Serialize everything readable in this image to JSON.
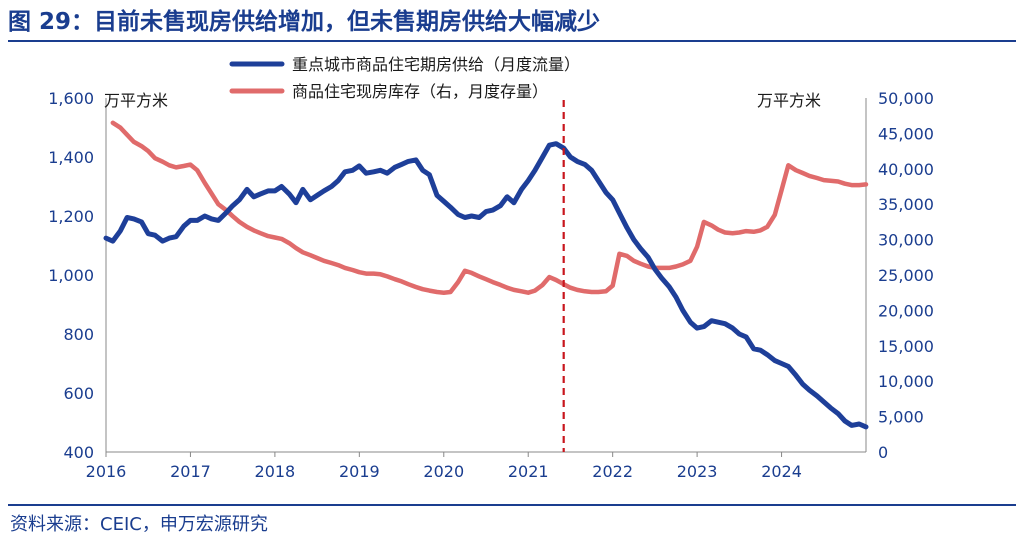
{
  "header": {
    "title": "图 29：目前未售现房供给增加，但未售期房供给大幅减少"
  },
  "footer": {
    "source": "资料来源：CEIC，申万宏源研究"
  },
  "colors": {
    "title": "#1a3d8f",
    "series1": "#1e3f99",
    "series2": "#e06b6b",
    "marker": "#c8161d"
  },
  "chart_data": {
    "type": "line",
    "title": "目前未售现房供给增加，但未售期房供给大幅减少",
    "left_unit": "万平方米",
    "right_unit": "万平方米",
    "x_ticks": [
      "2016",
      "2017",
      "2018",
      "2019",
      "2020",
      "2021",
      "2022",
      "2023",
      "2024"
    ],
    "x_range": [
      2016,
      2025
    ],
    "y_left": {
      "ylim": [
        400,
        1600
      ],
      "ticks": [
        "400",
        "600",
        "800",
        "1,000",
        "1,200",
        "1,400",
        "1,600"
      ],
      "tick_values": [
        400,
        600,
        800,
        1000,
        1200,
        1400,
        1600
      ]
    },
    "y_right": {
      "ylim": [
        0,
        50000
      ],
      "ticks": [
        "0",
        "5,000",
        "10,000",
        "15,000",
        "20,000",
        "25,000",
        "30,000",
        "35,000",
        "40,000",
        "45,000",
        "50,000"
      ],
      "tick_values": [
        0,
        5000,
        10000,
        15000,
        20000,
        25000,
        30000,
        35000,
        40000,
        45000,
        50000
      ]
    },
    "vertical_marker": {
      "x": 2021.42,
      "style": "dashed"
    },
    "series": [
      {
        "name": "重点城市商品住宅期房供给（月度流量）",
        "axis": "left",
        "points": [
          [
            2016.0,
            1125
          ],
          [
            2016.08,
            1115
          ],
          [
            2016.17,
            1150
          ],
          [
            2016.25,
            1195
          ],
          [
            2016.33,
            1190
          ],
          [
            2016.42,
            1180
          ],
          [
            2016.5,
            1140
          ],
          [
            2016.58,
            1135
          ],
          [
            2016.67,
            1115
          ],
          [
            2016.75,
            1125
          ],
          [
            2016.83,
            1130
          ],
          [
            2016.92,
            1165
          ],
          [
            2017.0,
            1185
          ],
          [
            2017.08,
            1185
          ],
          [
            2017.17,
            1200
          ],
          [
            2017.25,
            1190
          ],
          [
            2017.33,
            1185
          ],
          [
            2017.42,
            1210
          ],
          [
            2017.5,
            1235
          ],
          [
            2017.58,
            1255
          ],
          [
            2017.67,
            1290
          ],
          [
            2017.75,
            1265
          ],
          [
            2017.83,
            1275
          ],
          [
            2017.92,
            1285
          ],
          [
            2018.0,
            1285
          ],
          [
            2018.08,
            1300
          ],
          [
            2018.17,
            1275
          ],
          [
            2018.25,
            1245
          ],
          [
            2018.33,
            1290
          ],
          [
            2018.42,
            1255
          ],
          [
            2018.5,
            1270
          ],
          [
            2018.58,
            1285
          ],
          [
            2018.67,
            1300
          ],
          [
            2018.75,
            1320
          ],
          [
            2018.83,
            1350
          ],
          [
            2018.92,
            1355
          ],
          [
            2019.0,
            1370
          ],
          [
            2019.08,
            1345
          ],
          [
            2019.17,
            1350
          ],
          [
            2019.25,
            1355
          ],
          [
            2019.33,
            1345
          ],
          [
            2019.42,
            1365
          ],
          [
            2019.5,
            1375
          ],
          [
            2019.58,
            1385
          ],
          [
            2019.67,
            1390
          ],
          [
            2019.75,
            1355
          ],
          [
            2019.83,
            1340
          ],
          [
            2019.92,
            1270
          ],
          [
            2020.0,
            1250
          ],
          [
            2020.08,
            1230
          ],
          [
            2020.17,
            1205
          ],
          [
            2020.25,
            1195
          ],
          [
            2020.33,
            1200
          ],
          [
            2020.42,
            1195
          ],
          [
            2020.5,
            1215
          ],
          [
            2020.58,
            1220
          ],
          [
            2020.67,
            1235
          ],
          [
            2020.75,
            1265
          ],
          [
            2020.83,
            1245
          ],
          [
            2020.92,
            1290
          ],
          [
            2021.0,
            1320
          ],
          [
            2021.08,
            1355
          ],
          [
            2021.17,
            1400
          ],
          [
            2021.25,
            1440
          ],
          [
            2021.33,
            1445
          ],
          [
            2021.42,
            1430
          ],
          [
            2021.5,
            1400
          ],
          [
            2021.58,
            1385
          ],
          [
            2021.67,
            1375
          ],
          [
            2021.75,
            1355
          ],
          [
            2021.83,
            1320
          ],
          [
            2021.92,
            1280
          ],
          [
            2022.0,
            1255
          ],
          [
            2022.08,
            1210
          ],
          [
            2022.17,
            1160
          ],
          [
            2022.25,
            1120
          ],
          [
            2022.33,
            1090
          ],
          [
            2022.42,
            1060
          ],
          [
            2022.5,
            1020
          ],
          [
            2022.58,
            990
          ],
          [
            2022.67,
            960
          ],
          [
            2022.75,
            925
          ],
          [
            2022.83,
            880
          ],
          [
            2022.92,
            840
          ],
          [
            2023.0,
            820
          ],
          [
            2023.08,
            825
          ],
          [
            2023.17,
            845
          ],
          [
            2023.25,
            840
          ],
          [
            2023.33,
            835
          ],
          [
            2023.42,
            820
          ],
          [
            2023.5,
            800
          ],
          [
            2023.58,
            790
          ],
          [
            2023.67,
            750
          ],
          [
            2023.75,
            745
          ],
          [
            2023.83,
            730
          ],
          [
            2023.92,
            710
          ],
          [
            2024.0,
            700
          ],
          [
            2024.08,
            690
          ],
          [
            2024.17,
            660
          ],
          [
            2024.25,
            630
          ],
          [
            2024.33,
            610
          ],
          [
            2024.42,
            590
          ],
          [
            2024.5,
            570
          ],
          [
            2024.58,
            550
          ],
          [
            2024.67,
            530
          ],
          [
            2024.75,
            505
          ],
          [
            2024.83,
            490
          ],
          [
            2024.92,
            495
          ],
          [
            2025.0,
            485
          ]
        ]
      },
      {
        "name": "商品住宅现房库存（右，月度存量）",
        "axis": "right",
        "points": [
          [
            2016.08,
            46500
          ],
          [
            2016.17,
            45800
          ],
          [
            2016.25,
            44800
          ],
          [
            2016.33,
            43800
          ],
          [
            2016.42,
            43200
          ],
          [
            2016.5,
            42500
          ],
          [
            2016.58,
            41500
          ],
          [
            2016.67,
            41000
          ],
          [
            2016.75,
            40500
          ],
          [
            2016.83,
            40200
          ],
          [
            2016.92,
            40400
          ],
          [
            2017.0,
            40600
          ],
          [
            2017.08,
            39800
          ],
          [
            2017.17,
            38000
          ],
          [
            2017.25,
            36500
          ],
          [
            2017.33,
            35000
          ],
          [
            2017.42,
            34200
          ],
          [
            2017.5,
            33300
          ],
          [
            2017.58,
            32500
          ],
          [
            2017.67,
            31800
          ],
          [
            2017.75,
            31300
          ],
          [
            2017.83,
            30900
          ],
          [
            2017.92,
            30500
          ],
          [
            2018.0,
            30300
          ],
          [
            2018.08,
            30100
          ],
          [
            2018.17,
            29500
          ],
          [
            2018.25,
            28800
          ],
          [
            2018.33,
            28200
          ],
          [
            2018.42,
            27800
          ],
          [
            2018.5,
            27400
          ],
          [
            2018.58,
            27000
          ],
          [
            2018.67,
            26700
          ],
          [
            2018.75,
            26400
          ],
          [
            2018.83,
            26000
          ],
          [
            2018.92,
            25700
          ],
          [
            2019.0,
            25400
          ],
          [
            2019.08,
            25200
          ],
          [
            2019.17,
            25200
          ],
          [
            2019.25,
            25100
          ],
          [
            2019.33,
            24800
          ],
          [
            2019.42,
            24400
          ],
          [
            2019.5,
            24100
          ],
          [
            2019.58,
            23700
          ],
          [
            2019.67,
            23300
          ],
          [
            2019.75,
            23000
          ],
          [
            2019.83,
            22800
          ],
          [
            2019.92,
            22600
          ],
          [
            2020.0,
            22500
          ],
          [
            2020.08,
            22600
          ],
          [
            2020.17,
            24000
          ],
          [
            2020.25,
            25600
          ],
          [
            2020.33,
            25300
          ],
          [
            2020.42,
            24800
          ],
          [
            2020.5,
            24400
          ],
          [
            2020.58,
            24000
          ],
          [
            2020.67,
            23600
          ],
          [
            2020.75,
            23200
          ],
          [
            2020.83,
            22900
          ],
          [
            2020.92,
            22700
          ],
          [
            2021.0,
            22500
          ],
          [
            2021.08,
            22800
          ],
          [
            2021.17,
            23600
          ],
          [
            2021.25,
            24700
          ],
          [
            2021.33,
            24300
          ],
          [
            2021.42,
            23700
          ],
          [
            2021.5,
            23200
          ],
          [
            2021.58,
            22900
          ],
          [
            2021.67,
            22700
          ],
          [
            2021.75,
            22600
          ],
          [
            2021.83,
            22600
          ],
          [
            2021.92,
            22700
          ],
          [
            2022.0,
            23500
          ],
          [
            2022.08,
            28000
          ],
          [
            2022.17,
            27700
          ],
          [
            2022.25,
            27000
          ],
          [
            2022.33,
            26600
          ],
          [
            2022.42,
            26200
          ],
          [
            2022.5,
            26000
          ],
          [
            2022.58,
            26000
          ],
          [
            2022.67,
            26000
          ],
          [
            2022.75,
            26200
          ],
          [
            2022.83,
            26500
          ],
          [
            2022.92,
            27000
          ],
          [
            2023.0,
            29000
          ],
          [
            2023.08,
            32500
          ],
          [
            2023.17,
            32000
          ],
          [
            2023.25,
            31400
          ],
          [
            2023.33,
            31000
          ],
          [
            2023.42,
            30900
          ],
          [
            2023.5,
            31000
          ],
          [
            2023.58,
            31200
          ],
          [
            2023.67,
            31100
          ],
          [
            2023.75,
            31300
          ],
          [
            2023.83,
            31800
          ],
          [
            2023.92,
            33500
          ],
          [
            2024.0,
            37000
          ],
          [
            2024.08,
            40500
          ],
          [
            2024.17,
            39800
          ],
          [
            2024.25,
            39400
          ],
          [
            2024.33,
            39000
          ],
          [
            2024.42,
            38700
          ],
          [
            2024.5,
            38400
          ],
          [
            2024.58,
            38300
          ],
          [
            2024.67,
            38200
          ],
          [
            2024.75,
            37900
          ],
          [
            2024.83,
            37700
          ],
          [
            2024.92,
            37700
          ],
          [
            2025.0,
            37800
          ]
        ]
      }
    ]
  }
}
